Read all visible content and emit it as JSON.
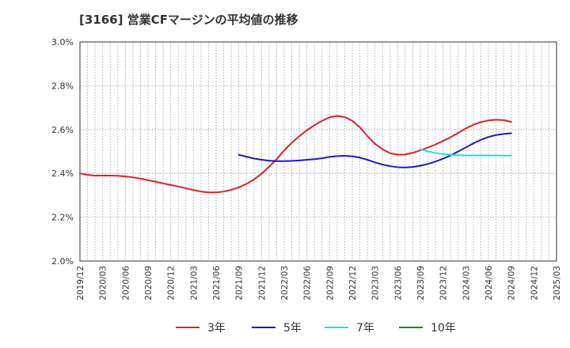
{
  "title": "[3166]  営業CFマージンの平均値の推移",
  "chart_data": {
    "type": "line",
    "title": "[3166]  営業CFマージンの平均値の推移",
    "xlabel": "",
    "ylabel": "",
    "x_ticks": [
      "2019/12",
      "2020/03",
      "2020/06",
      "2020/09",
      "2020/12",
      "2021/03",
      "2021/06",
      "2021/09",
      "2021/12",
      "2022/03",
      "2022/06",
      "2022/09",
      "2022/12",
      "2023/03",
      "2023/06",
      "2023/09",
      "2023/12",
      "2024/03",
      "2024/06",
      "2024/09",
      "2024/12",
      "2025/03"
    ],
    "y_ticks": [
      "2.0%",
      "2.2%",
      "2.4%",
      "2.6%",
      "2.8%",
      "3.0%"
    ],
    "y_tick_values": [
      2.0,
      2.2,
      2.4,
      2.6,
      2.8,
      3.0
    ],
    "ylim": [
      2.0,
      3.0
    ],
    "y_unit": "%",
    "grid": true,
    "legend_position": "bottom",
    "series": [
      {
        "name": "3年",
        "color": "#dd2222",
        "x": [
          "2019/12",
          "2020/01",
          "2020/02",
          "2020/03",
          "2020/04",
          "2020/05",
          "2020/06",
          "2020/07",
          "2020/08",
          "2020/09",
          "2020/10",
          "2020/11",
          "2020/12",
          "2021/01",
          "2021/02",
          "2021/03",
          "2021/04",
          "2021/05",
          "2021/06",
          "2021/07",
          "2021/08",
          "2021/09",
          "2021/10",
          "2021/11",
          "2021/12",
          "2022/01",
          "2022/02",
          "2022/03",
          "2022/04",
          "2022/05",
          "2022/06",
          "2022/07",
          "2022/08",
          "2022/09",
          "2022/10",
          "2022/11",
          "2022/12",
          "2023/01",
          "2023/02",
          "2023/03",
          "2023/04",
          "2023/05",
          "2023/06",
          "2023/07",
          "2023/08",
          "2023/09",
          "2023/10",
          "2023/11",
          "2023/12",
          "2024/01",
          "2024/02",
          "2024/03",
          "2024/04",
          "2024/05",
          "2024/06",
          "2024/07",
          "2024/08",
          "2024/09"
        ],
        "values": [
          2.4,
          2.393,
          2.39,
          2.39,
          2.39,
          2.389,
          2.386,
          2.382,
          2.376,
          2.369,
          2.362,
          2.354,
          2.347,
          2.34,
          2.332,
          2.324,
          2.317,
          2.313,
          2.313,
          2.317,
          2.325,
          2.336,
          2.352,
          2.372,
          2.398,
          2.43,
          2.465,
          2.505,
          2.54,
          2.57,
          2.597,
          2.62,
          2.64,
          2.656,
          2.662,
          2.657,
          2.64,
          2.61,
          2.57,
          2.535,
          2.51,
          2.492,
          2.485,
          2.486,
          2.494,
          2.505,
          2.518,
          2.532,
          2.548,
          2.565,
          2.585,
          2.605,
          2.622,
          2.634,
          2.642,
          2.645,
          2.643,
          2.635
        ]
      },
      {
        "name": "5年",
        "color": "#1a1acc",
        "x": [
          "2021/09",
          "2021/10",
          "2021/11",
          "2021/12",
          "2022/01",
          "2022/02",
          "2022/03",
          "2022/04",
          "2022/05",
          "2022/06",
          "2022/07",
          "2022/08",
          "2022/09",
          "2022/10",
          "2022/11",
          "2022/12",
          "2023/01",
          "2023/02",
          "2023/03",
          "2023/04",
          "2023/05",
          "2023/06",
          "2023/07",
          "2023/08",
          "2023/09",
          "2023/10",
          "2023/11",
          "2023/12",
          "2024/01",
          "2024/02",
          "2024/03",
          "2024/04",
          "2024/05",
          "2024/06",
          "2024/07",
          "2024/08",
          "2024/09"
        ],
        "values": [
          2.485,
          2.476,
          2.468,
          2.462,
          2.458,
          2.456,
          2.456,
          2.457,
          2.459,
          2.462,
          2.465,
          2.469,
          2.475,
          2.479,
          2.48,
          2.478,
          2.472,
          2.462,
          2.45,
          2.44,
          2.433,
          2.428,
          2.427,
          2.429,
          2.435,
          2.443,
          2.454,
          2.467,
          2.482,
          2.5,
          2.518,
          2.537,
          2.553,
          2.566,
          2.575,
          2.58,
          2.583
        ]
      },
      {
        "name": "7年",
        "color": "#22dddd",
        "x": [
          "2023/09",
          "2023/10",
          "2023/11",
          "2023/12",
          "2024/01",
          "2024/02",
          "2024/03",
          "2024/04",
          "2024/05",
          "2024/06",
          "2024/07",
          "2024/08",
          "2024/09"
        ],
        "values": [
          2.51,
          2.5,
          2.493,
          2.488,
          2.485,
          2.483,
          2.482,
          2.482,
          2.482,
          2.482,
          2.482,
          2.481,
          2.481
        ]
      },
      {
        "name": "10年",
        "color": "#228822",
        "x": [],
        "values": []
      }
    ]
  }
}
